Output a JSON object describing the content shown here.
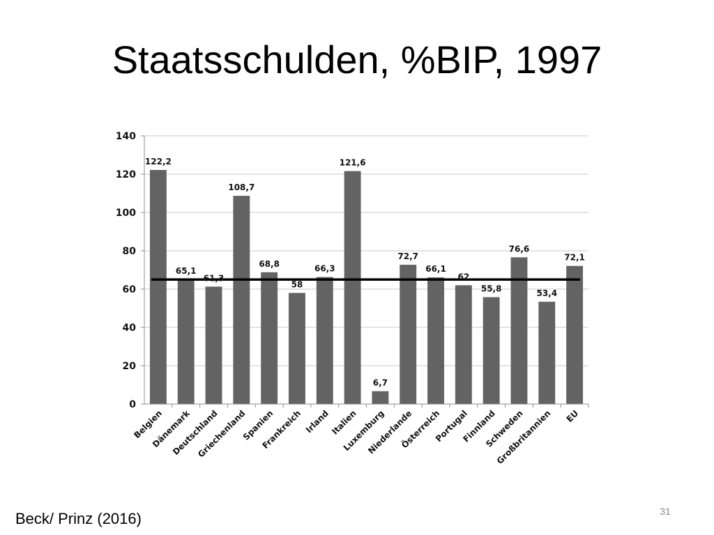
{
  "slide": {
    "title": "Staatsschulden, %BIP, 1997",
    "source": "Beck/ Prinz (2016)",
    "page_number": "31"
  },
  "chart_data": {
    "type": "bar",
    "title": "",
    "xlabel": "",
    "ylabel": "",
    "categories": [
      "Belgien",
      "Dänemark",
      "Deutschland",
      "Griechenland",
      "Spanien",
      "Frankreich",
      "Irland",
      "Italien",
      "Luxemburg",
      "Niederlande",
      "Österreich",
      "Portugal",
      "Finnland",
      "Schweden",
      "Großbritannien",
      "EU"
    ],
    "values": [
      122.2,
      65.1,
      61.3,
      108.7,
      68.8,
      58,
      66.3,
      121.6,
      6.7,
      72.7,
      66.1,
      62,
      55.8,
      76.6,
      53.4,
      72.1
    ],
    "data_labels": [
      "122,2",
      "65,1",
      "61,3",
      "108,7",
      "68,8",
      "58",
      "66,3",
      "121,6",
      "6,7",
      "72,7",
      "66,1",
      "62",
      "55,8",
      "76,6",
      "53,4",
      "72,1"
    ],
    "ylim": [
      0,
      140
    ],
    "yticks": [
      0,
      20,
      40,
      60,
      80,
      100,
      120,
      140
    ],
    "grid": true,
    "reference_line": 65,
    "bar_color": "#636363",
    "line_color": "#000000"
  }
}
